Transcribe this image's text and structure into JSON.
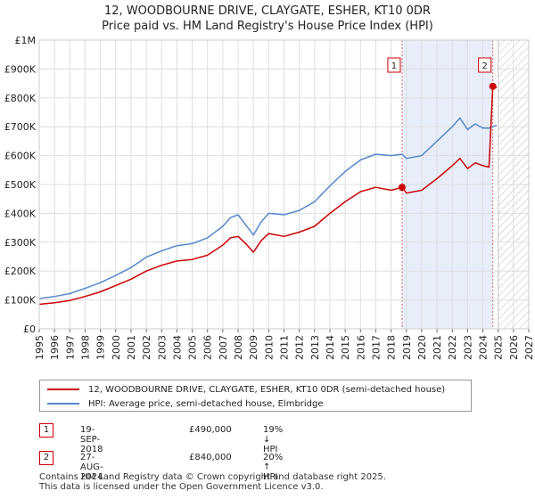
{
  "title_line1": "12, WOODBOURNE DRIVE, CLAYGATE, ESHER, KT10 0DR",
  "title_line2": "Price paid vs. HM Land Registry's House Price Index (HPI)",
  "legend": [
    {
      "label": "12, WOODBOURNE DRIVE, CLAYGATE, ESHER, KT10 0DR (semi-detached house)",
      "color": "#cc0000"
    },
    {
      "label": "HPI: Average price, semi-detached house, Elmbridge",
      "color": "#5588cc"
    }
  ],
  "transactions": [
    {
      "num": "1",
      "date": "19-SEP-2018",
      "price": "£490,000",
      "hpi": "19% ↓ HPI"
    },
    {
      "num": "2",
      "date": "27-AUG-2024",
      "price": "£840,000",
      "hpi": "20% ↑ HPI"
    }
  ],
  "footer_line1": "Contains HM Land Registry data © Crown copyright and database right 2025.",
  "footer_line2": "This data is licensed under the Open Government Licence v3.0.",
  "chart_data": {
    "type": "line",
    "xlim": [
      1995,
      2027
    ],
    "ylim": [
      0,
      1000000
    ],
    "x_ticks": [
      "1995",
      "1996",
      "1997",
      "1998",
      "1999",
      "2000",
      "2001",
      "2002",
      "2003",
      "2004",
      "2005",
      "2006",
      "2007",
      "2008",
      "2009",
      "2010",
      "2011",
      "2012",
      "2013",
      "2014",
      "2015",
      "2016",
      "2017",
      "2018",
      "2019",
      "2020",
      "2021",
      "2022",
      "2023",
      "2024",
      "2025",
      "2026",
      "2027"
    ],
    "y_ticks": [
      {
        "value": 0,
        "label": "£0"
      },
      {
        "value": 100000,
        "label": "£100K"
      },
      {
        "value": 200000,
        "label": "£200K"
      },
      {
        "value": 300000,
        "label": "£300K"
      },
      {
        "value": 400000,
        "label": "£400K"
      },
      {
        "value": 500000,
        "label": "£500K"
      },
      {
        "value": 600000,
        "label": "£600K"
      },
      {
        "value": 700000,
        "label": "£700K"
      },
      {
        "value": 800000,
        "label": "£800K"
      },
      {
        "value": 900000,
        "label": "£900K"
      },
      {
        "value": 1000000,
        "label": "£1M"
      }
    ],
    "grid": true,
    "shaded_period": [
      2018.72,
      2024.65
    ],
    "future_hatch_from": 2025.0,
    "sales": [
      {
        "label": "1",
        "x": 2018.72,
        "y": 490000
      },
      {
        "label": "2",
        "x": 2024.65,
        "y": 840000
      }
    ],
    "series": [
      {
        "name": "12, WOODBOURNE DRIVE, CLAYGATE, ESHER, KT10 0DR (semi-detached house)",
        "color": "#cc0000",
        "x": [
          1995,
          1996,
          1997,
          1998,
          1999,
          2000,
          2001,
          2002,
          2003,
          2004,
          2005,
          2006,
          2007,
          2007.5,
          2008,
          2008.5,
          2009,
          2009.5,
          2010,
          2011,
          2012,
          2013,
          2014,
          2015,
          2016,
          2017,
          2018,
          2018.72,
          2019,
          2020,
          2020.5,
          2021,
          2022,
          2022.5,
          2023,
          2023.5,
          2024,
          2024.4,
          2024.65,
          2024.9
        ],
        "y": [
          85000,
          90000,
          98000,
          112000,
          128000,
          150000,
          172000,
          200000,
          220000,
          235000,
          240000,
          255000,
          290000,
          315000,
          320000,
          295000,
          265000,
          305000,
          330000,
          320000,
          335000,
          355000,
          400000,
          440000,
          475000,
          490000,
          480000,
          490000,
          470000,
          480000,
          500000,
          520000,
          565000,
          590000,
          555000,
          575000,
          565000,
          560000,
          840000,
          835000
        ]
      },
      {
        "name": "HPI: Average price, semi-detached house, Elmbridge",
        "color": "#5588cc",
        "x": [
          1995,
          1996,
          1997,
          1998,
          1999,
          2000,
          2001,
          2002,
          2003,
          2004,
          2005,
          2006,
          2007,
          2007.5,
          2008,
          2008.5,
          2009,
          2009.5,
          2010,
          2011,
          2012,
          2013,
          2014,
          2015,
          2016,
          2017,
          2018,
          2018.72,
          2019,
          2020,
          2020.5,
          2021,
          2022,
          2022.5,
          2023,
          2023.5,
          2024,
          2024.4,
          2024.65,
          2024.9
        ],
        "y": [
          105000,
          112000,
          122000,
          140000,
          160000,
          185000,
          212000,
          248000,
          270000,
          288000,
          295000,
          315000,
          355000,
          385000,
          395000,
          360000,
          325000,
          370000,
          400000,
          395000,
          410000,
          440000,
          495000,
          545000,
          585000,
          605000,
          600000,
          605000,
          590000,
          600000,
          625000,
          650000,
          700000,
          730000,
          690000,
          710000,
          695000,
          695000,
          700000,
          705000
        ]
      }
    ]
  }
}
